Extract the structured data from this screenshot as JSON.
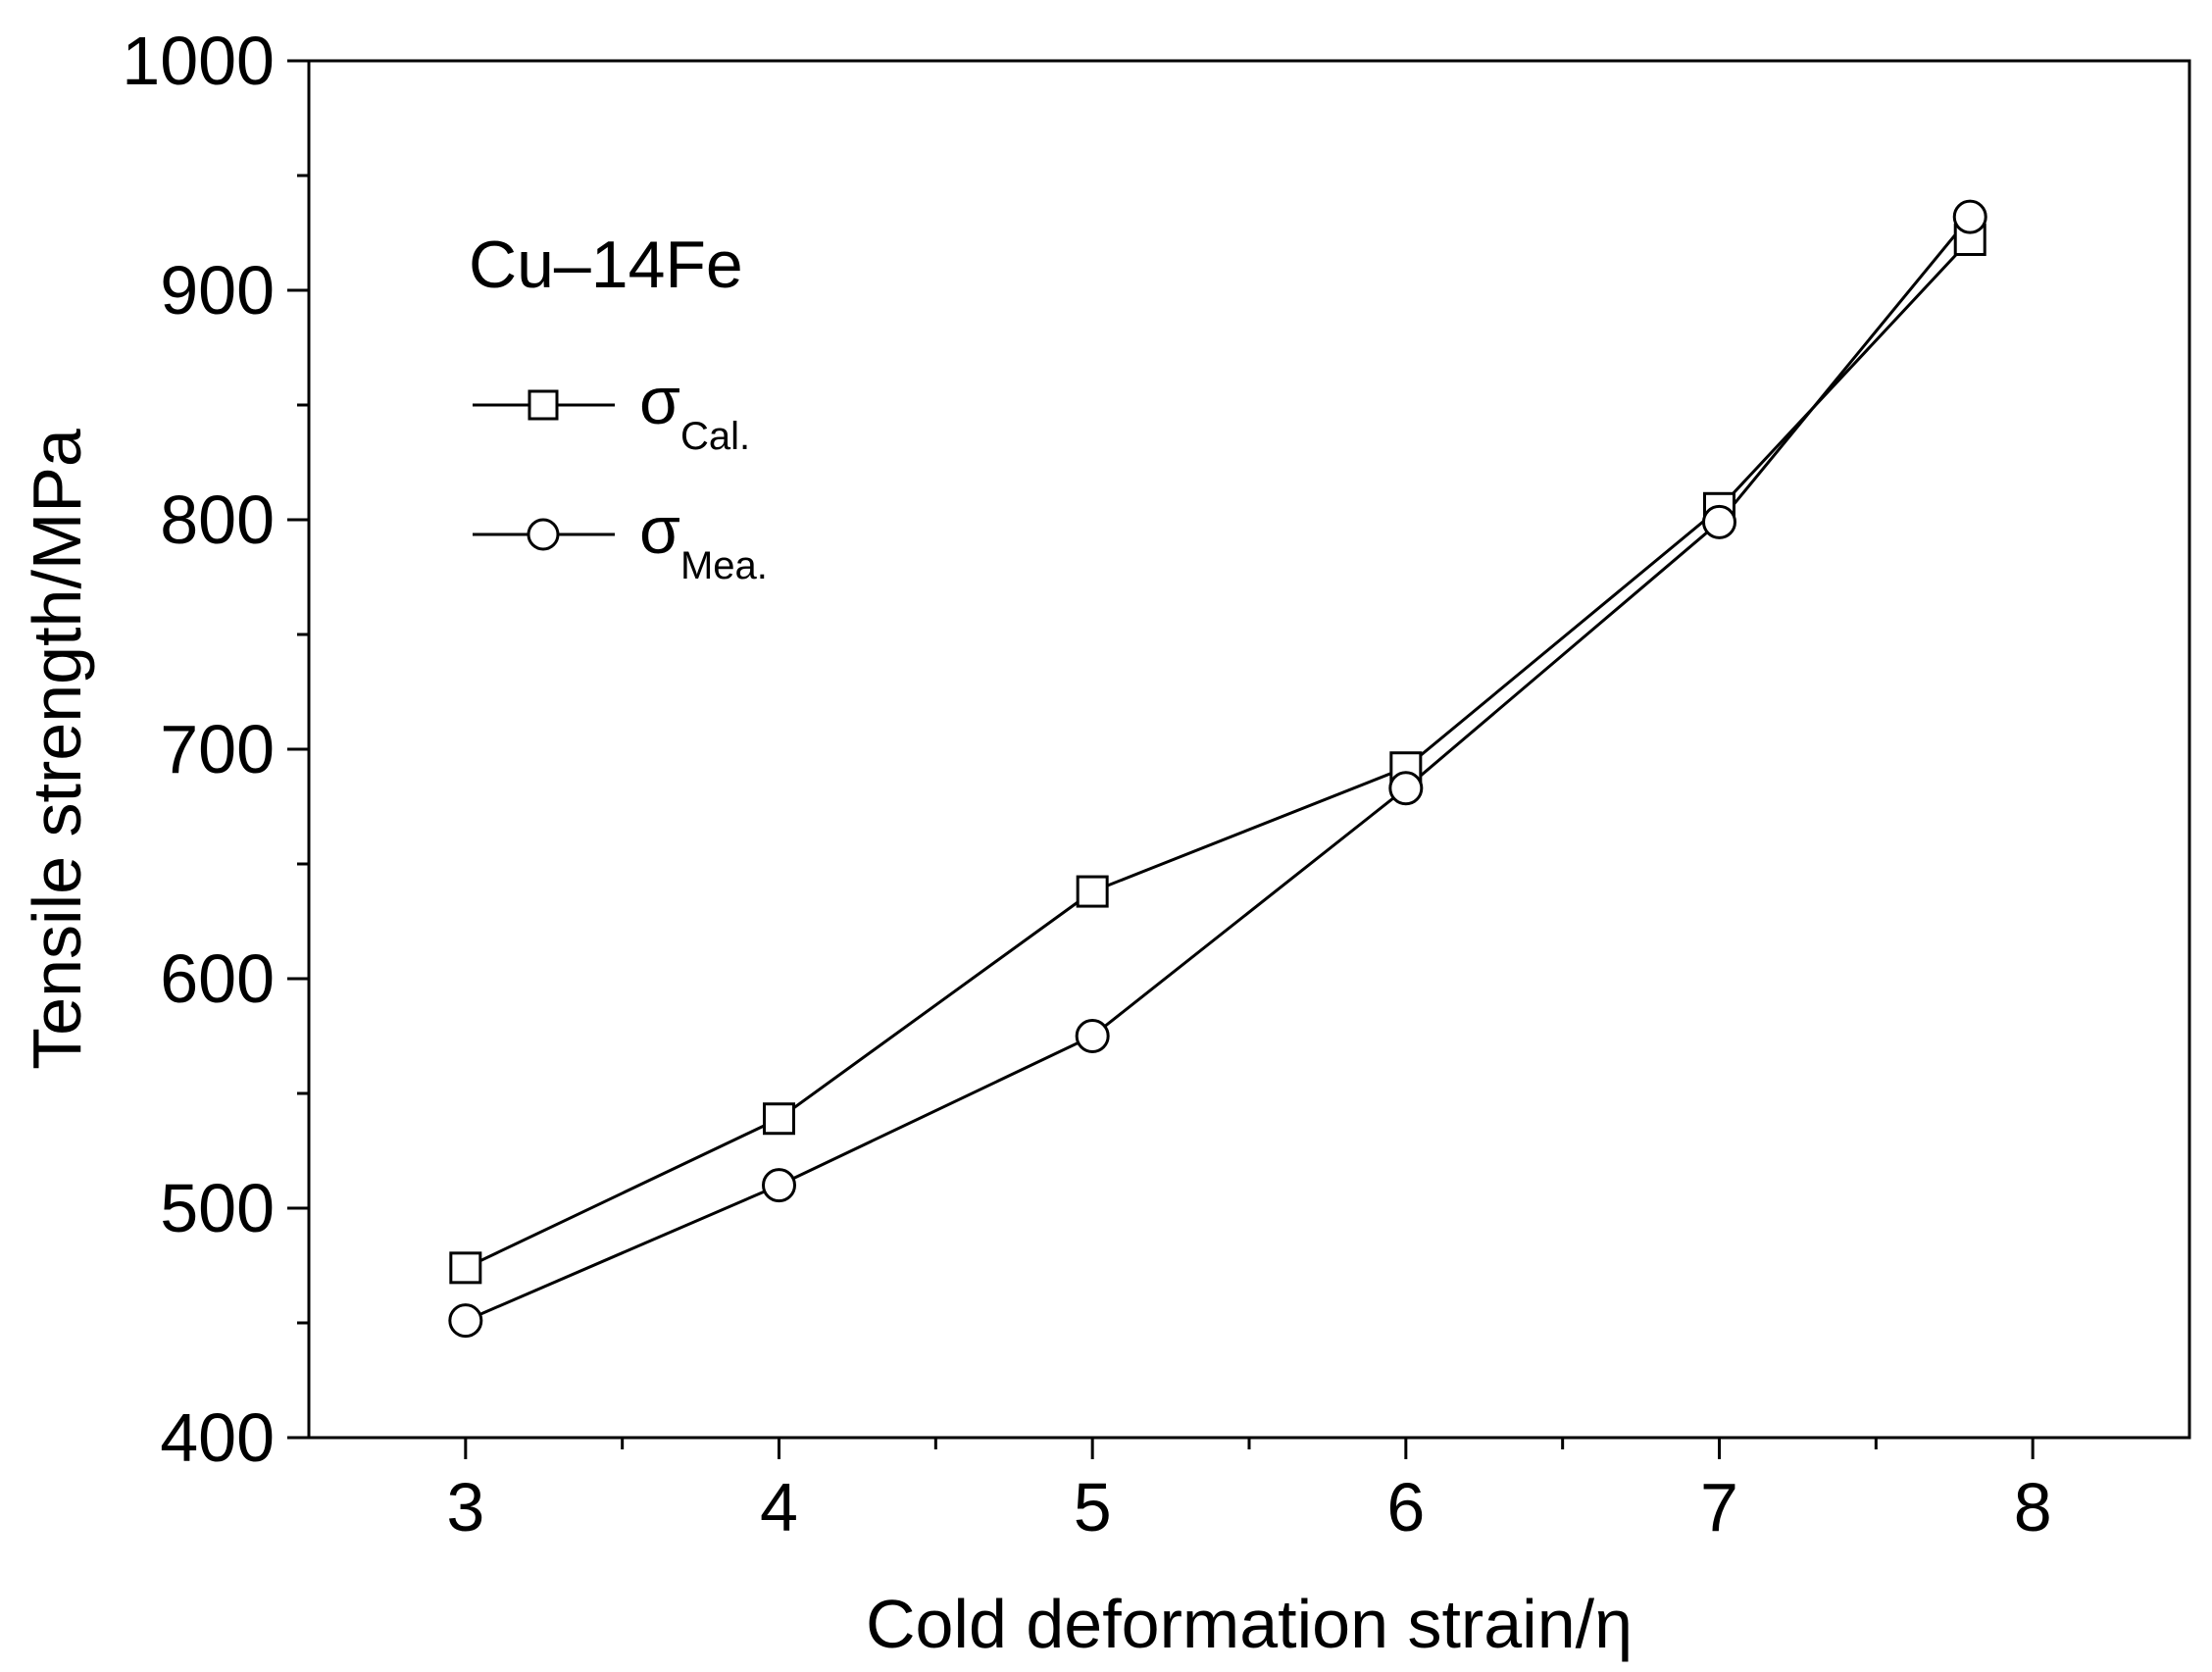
{
  "chart_data": {
    "type": "line",
    "title": "",
    "xlabel": "Cold deformation strain/η",
    "ylabel": "Tensile strength/MPa",
    "xlim": [
      2.5,
      8.5
    ],
    "ylim": [
      400,
      1000
    ],
    "x_ticks": [
      3,
      4,
      5,
      6,
      7,
      8
    ],
    "y_ticks": [
      400,
      500,
      600,
      700,
      800,
      900,
      1000
    ],
    "x_tick_labels": [
      "3",
      "4",
      "5",
      "6",
      "7",
      "8"
    ],
    "y_tick_labels": [
      "400",
      "500",
      "600",
      "700",
      "800",
      "900",
      "1000"
    ],
    "x": [
      3,
      4,
      5,
      6,
      7,
      7.8
    ],
    "series": [
      {
        "symbol": "σ",
        "subscript": "Cal.",
        "marker": "square",
        "values": [
          474,
          539,
          638,
          692,
          805,
          922
        ]
      },
      {
        "symbol": "σ",
        "subscript": "Mea.",
        "marker": "circle",
        "values": [
          451,
          510,
          575,
          683,
          799,
          932
        ]
      }
    ],
    "annotation": "Cu–14Fe",
    "legend_position": "top-left",
    "grid": false,
    "colors": {
      "line": "#000000",
      "marker_fill": "#ffffff",
      "background": "#ffffff"
    }
  }
}
